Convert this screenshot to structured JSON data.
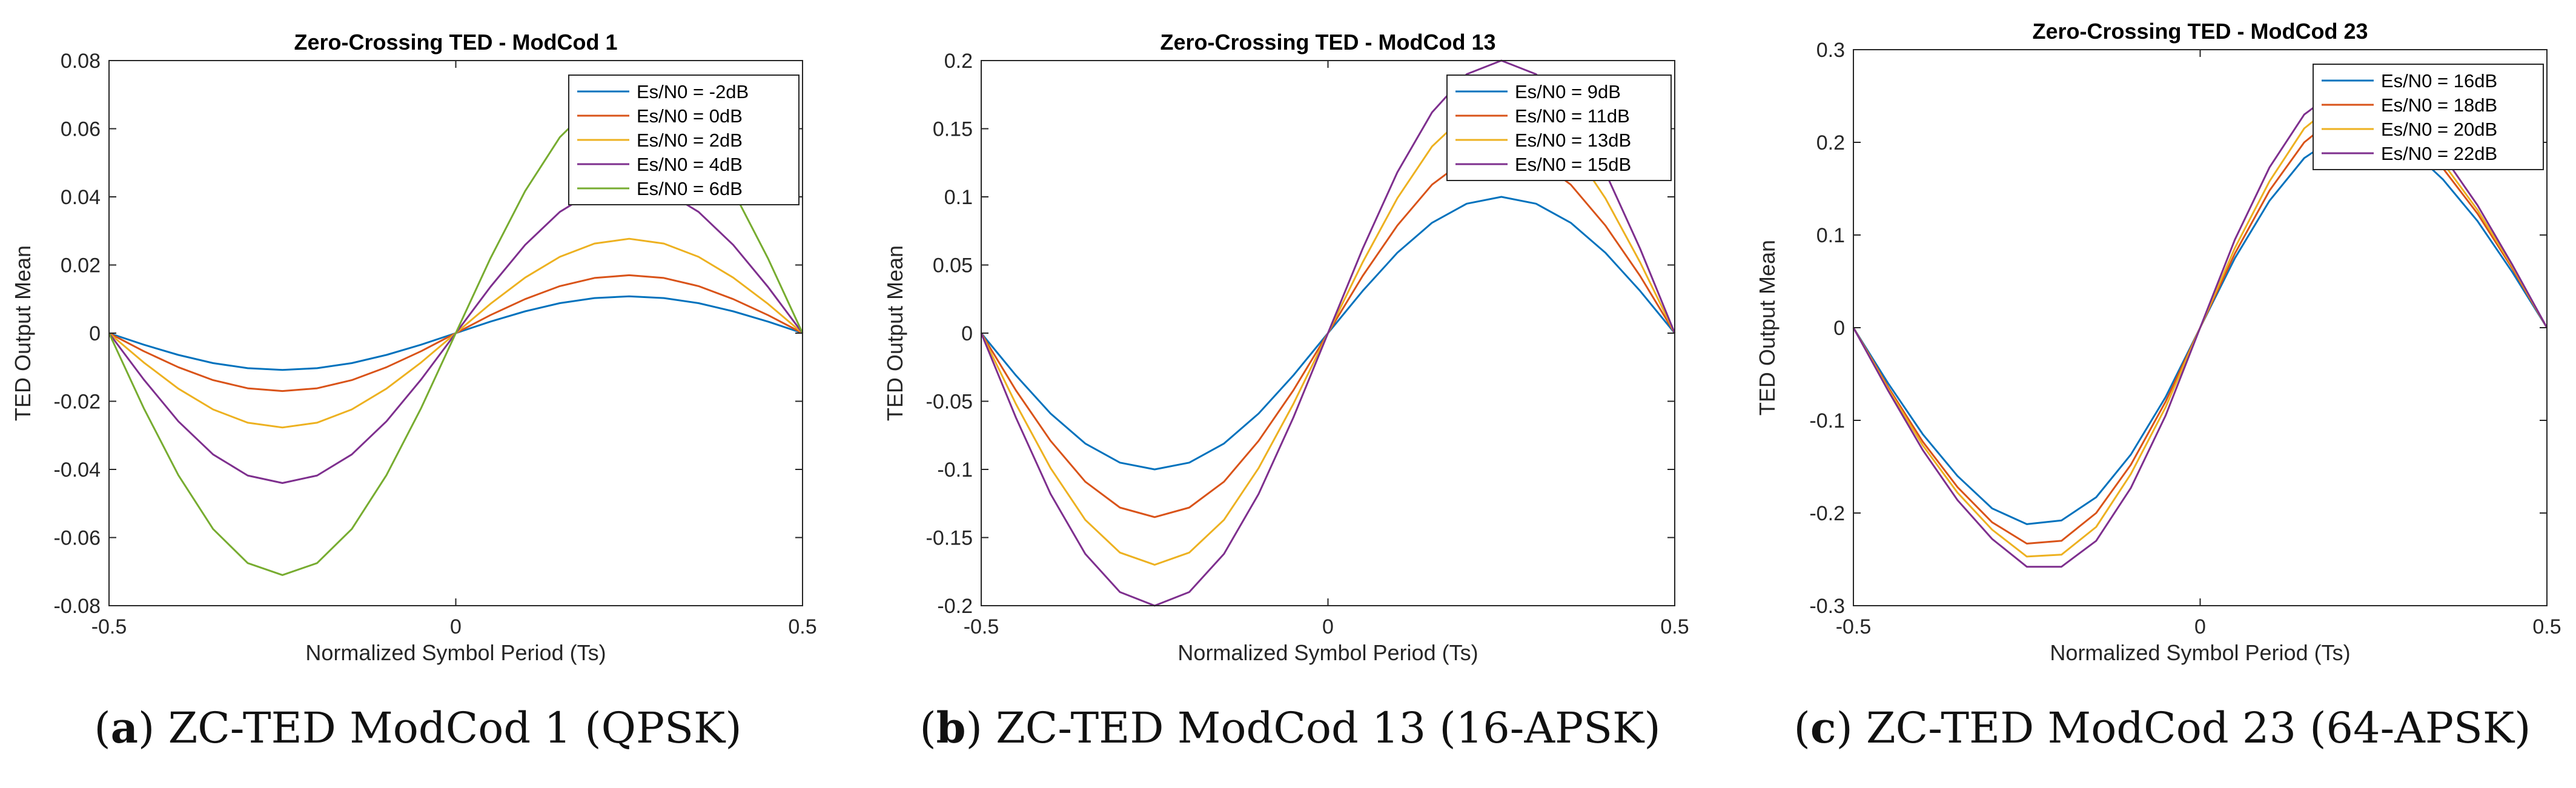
{
  "chart_data": [
    {
      "type": "line",
      "title": "Zero-Crossing TED - ModCod 1",
      "xlabel": "Normalized Symbol Period (Ts)",
      "ylabel": "TED Output Mean",
      "xlim": [
        -0.5,
        0.5
      ],
      "ylim": [
        -0.08,
        0.08
      ],
      "xticks": [
        -0.5,
        0,
        0.5
      ],
      "xtick_labels": [
        "-0.5",
        "0",
        "0.5"
      ],
      "yticks": [
        -0.08,
        -0.06,
        -0.04,
        -0.02,
        0,
        0.02,
        0.04,
        0.06,
        0.08
      ],
      "ytick_labels": [
        "-0.08",
        "-0.06",
        "-0.04",
        "-0.02",
        "0",
        "0.02",
        "0.04",
        "0.06",
        "0.08"
      ],
      "legend_position": "top-right",
      "x": [
        -0.5,
        -0.45,
        -0.4,
        -0.35,
        -0.3,
        -0.25,
        -0.2,
        -0.15,
        -0.1,
        -0.05,
        0,
        0.05,
        0.1,
        0.15,
        0.2,
        0.25,
        0.3,
        0.35,
        0.4,
        0.45,
        0.5
      ],
      "series": [
        {
          "name": "Es/N0 = -2dB",
          "color": "#0072BD",
          "values": [
            0,
            -0.0034,
            -0.0064,
            -0.0088,
            -0.0103,
            -0.0108,
            -0.0103,
            -0.0088,
            -0.0064,
            -0.0034,
            0,
            0.0034,
            0.0064,
            0.0088,
            0.0103,
            0.0108,
            0.0103,
            0.0088,
            0.0064,
            0.0034,
            0
          ]
        },
        {
          "name": "Es/N0 = 0dB",
          "color": "#D95319",
          "values": [
            0,
            -0.0053,
            -0.01,
            -0.0138,
            -0.0162,
            -0.017,
            -0.0162,
            -0.0138,
            -0.01,
            -0.0053,
            0,
            0.0053,
            0.01,
            0.0138,
            0.0162,
            0.017,
            0.0162,
            0.0138,
            0.01,
            0.0053,
            0
          ]
        },
        {
          "name": "Es/N0 = 2dB",
          "color": "#EDB120",
          "values": [
            0,
            -0.0086,
            -0.0163,
            -0.0224,
            -0.0263,
            -0.0277,
            -0.0263,
            -0.0224,
            -0.0163,
            -0.0086,
            0,
            0.0086,
            0.0163,
            0.0224,
            0.0263,
            0.0277,
            0.0263,
            0.0224,
            0.0163,
            0.0086,
            0
          ]
        },
        {
          "name": "Es/N0 = 4dB",
          "color": "#7E2F8E",
          "values": [
            0,
            -0.0136,
            -0.0259,
            -0.0356,
            -0.0418,
            -0.044,
            -0.0418,
            -0.0356,
            -0.0259,
            -0.0136,
            0,
            0.0136,
            0.0259,
            0.0356,
            0.0418,
            0.044,
            0.0418,
            0.0356,
            0.0259,
            0.0136,
            0
          ]
        },
        {
          "name": "Es/N0 = 6dB",
          "color": "#77AC30",
          "values": [
            0,
            -0.022,
            -0.0417,
            -0.0575,
            -0.0675,
            -0.071,
            -0.0675,
            -0.0575,
            -0.0417,
            -0.022,
            0,
            0.022,
            0.0417,
            0.0575,
            0.0675,
            0.071,
            0.0675,
            0.0575,
            0.0417,
            0.022,
            0
          ]
        }
      ]
    },
    {
      "type": "line",
      "title": "Zero-Crossing TED - ModCod 13",
      "xlabel": "Normalized Symbol Period (Ts)",
      "ylabel": "TED Output Mean",
      "xlim": [
        -0.5,
        0.5
      ],
      "ylim": [
        -0.2,
        0.2
      ],
      "xticks": [
        -0.5,
        0,
        0.5
      ],
      "xtick_labels": [
        "-0.5",
        "0",
        "0.5"
      ],
      "yticks": [
        -0.2,
        -0.15,
        -0.1,
        -0.05,
        0,
        0.05,
        0.1,
        0.15,
        0.2
      ],
      "ytick_labels": [
        "-0.2",
        "-0.15",
        "-0.1",
        "-0.05",
        "0",
        "0.05",
        "0.1",
        "0.15",
        "0.2"
      ],
      "legend_position": "top-right",
      "x": [
        -0.5,
        -0.45,
        -0.4,
        -0.35,
        -0.3,
        -0.25,
        -0.2,
        -0.15,
        -0.1,
        -0.05,
        0,
        0.05,
        0.1,
        0.15,
        0.2,
        0.25,
        0.3,
        0.35,
        0.4,
        0.45,
        0.5
      ],
      "series": [
        {
          "name": "Es/N0 = 9dB",
          "color": "#0072BD",
          "values": [
            0,
            -0.031,
            -0.059,
            -0.081,
            -0.095,
            -0.1,
            -0.095,
            -0.081,
            -0.059,
            -0.031,
            0,
            0.031,
            0.059,
            0.081,
            0.095,
            0.1,
            0.095,
            0.081,
            0.059,
            0.031,
            0
          ]
        },
        {
          "name": "Es/N0 = 11dB",
          "color": "#D95319",
          "values": [
            0,
            -0.042,
            -0.079,
            -0.109,
            -0.128,
            -0.135,
            -0.128,
            -0.109,
            -0.079,
            -0.042,
            0,
            0.042,
            0.079,
            0.109,
            0.128,
            0.135,
            0.128,
            0.109,
            0.079,
            0.042,
            0
          ]
        },
        {
          "name": "Es/N0 = 13dB",
          "color": "#EDB120",
          "values": [
            0,
            -0.052,
            -0.099,
            -0.137,
            -0.161,
            -0.17,
            -0.161,
            -0.137,
            -0.099,
            -0.052,
            0,
            0.052,
            0.099,
            0.137,
            0.161,
            0.17,
            0.161,
            0.137,
            0.099,
            0.052,
            0
          ]
        },
        {
          "name": "Es/N0 = 15dB",
          "color": "#7E2F8E",
          "values": [
            0,
            -0.062,
            -0.118,
            -0.162,
            -0.19,
            -0.2,
            -0.19,
            -0.162,
            -0.118,
            -0.062,
            0,
            0.062,
            0.118,
            0.162,
            0.19,
            0.2,
            0.19,
            0.162,
            0.118,
            0.062,
            0
          ]
        }
      ]
    },
    {
      "type": "line",
      "title": "Zero-Crossing TED - ModCod 23",
      "xlabel": "Normalized Symbol Period (Ts)",
      "ylabel": "TED Output Mean",
      "xlim": [
        -0.5,
        0.5
      ],
      "ylim": [
        -0.3,
        0.3
      ],
      "xticks": [
        -0.5,
        0,
        0.5
      ],
      "xtick_labels": [
        "-0.5",
        "0",
        "0.5"
      ],
      "yticks": [
        -0.3,
        -0.2,
        -0.1,
        0,
        0.1,
        0.2,
        0.3
      ],
      "ytick_labels": [
        "-0.3",
        "-0.2",
        "-0.1",
        "0",
        "0.1",
        "0.2",
        "0.3"
      ],
      "legend_position": "top-right",
      "x": [
        -0.5,
        -0.45,
        -0.4,
        -0.35,
        -0.3,
        -0.25,
        -0.2,
        -0.15,
        -0.1,
        -0.05,
        0,
        0.05,
        0.1,
        0.15,
        0.2,
        0.25,
        0.3,
        0.35,
        0.4,
        0.45,
        0.5
      ],
      "series": [
        {
          "name": "Es/N0 = 16dB",
          "color": "#0072BD",
          "values": [
            0,
            -0.06,
            -0.115,
            -0.16,
            -0.195,
            -0.212,
            -0.208,
            -0.183,
            -0.137,
            -0.075,
            0,
            0.075,
            0.137,
            0.183,
            0.208,
            0.212,
            0.195,
            0.16,
            0.115,
            0.06,
            0
          ]
        },
        {
          "name": "Es/N0 = 18dB",
          "color": "#D95319",
          "values": [
            0,
            -0.064,
            -0.123,
            -0.172,
            -0.21,
            -0.233,
            -0.23,
            -0.2,
            -0.148,
            -0.08,
            0,
            0.08,
            0.148,
            0.2,
            0.23,
            0.233,
            0.21,
            0.172,
            0.123,
            0.064,
            0
          ]
        },
        {
          "name": "Es/N0 = 20dB",
          "color": "#EDB120",
          "values": [
            0,
            -0.066,
            -0.127,
            -0.178,
            -0.218,
            -0.247,
            -0.245,
            -0.215,
            -0.158,
            -0.086,
            0,
            0.086,
            0.158,
            0.215,
            0.245,
            0.247,
            0.218,
            0.178,
            0.127,
            0.066,
            0
          ]
        },
        {
          "name": "Es/N0 = 22dB",
          "color": "#7E2F8E",
          "values": [
            0,
            -0.068,
            -0.132,
            -0.186,
            -0.228,
            -0.258,
            -0.258,
            -0.23,
            -0.173,
            -0.095,
            0,
            0.095,
            0.173,
            0.23,
            0.258,
            0.258,
            0.228,
            0.186,
            0.132,
            0.068,
            0
          ]
        }
      ]
    }
  ],
  "captions": [
    {
      "label": "(a)",
      "text": "ZC-TED ModCod 1 (QPSK)"
    },
    {
      "label": "(b)",
      "text": "ZC-TED ModCod 13 (16-APSK)"
    },
    {
      "label": "(c)",
      "text": "ZC-TED ModCod 23 (64-APSK)"
    }
  ]
}
